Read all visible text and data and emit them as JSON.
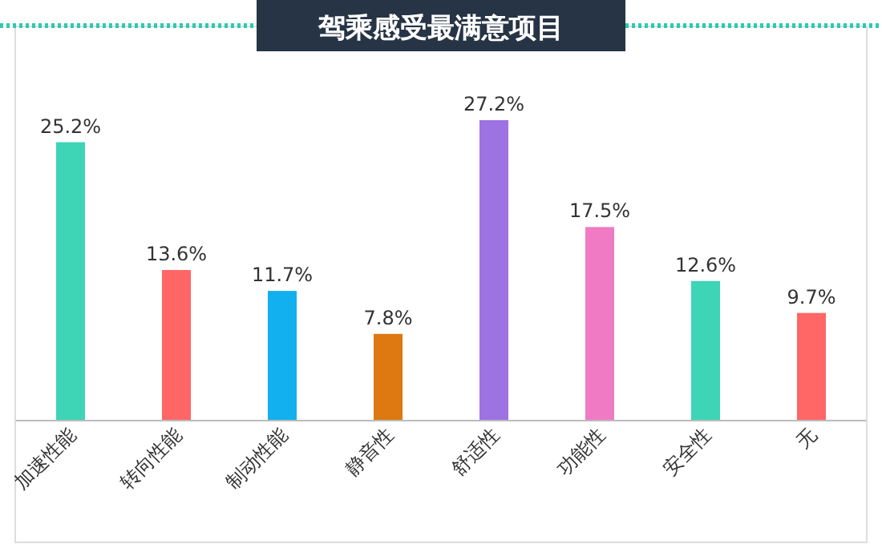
{
  "chart_data": {
    "type": "bar",
    "title": "驾乘感受最满意项目",
    "categories": [
      "加速性能",
      "转向性能",
      "制动性能",
      "静音性",
      "舒适性",
      "功能性",
      "安全性",
      "无"
    ],
    "values": [
      25.2,
      13.6,
      11.7,
      7.8,
      27.2,
      17.5,
      12.6,
      9.7
    ],
    "value_labels": [
      "25.2%",
      "13.6%",
      "11.7%",
      "7.8%",
      "27.2%",
      "17.5%",
      "12.6%",
      "9.7%"
    ],
    "colors": [
      "#3dd5b5",
      "#ff6666",
      "#12b0ef",
      "#de7810",
      "#9d72e3",
      "#f07bc4",
      "#3dd5b5",
      "#ff6666"
    ]
  }
}
